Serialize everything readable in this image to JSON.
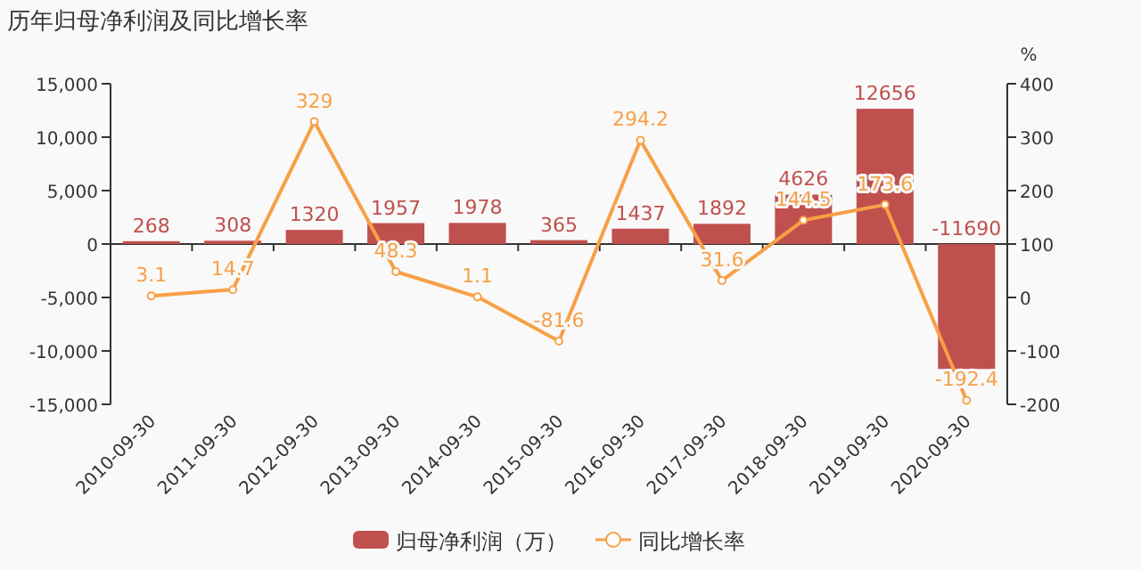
{
  "chart_data": {
    "type": "bar",
    "title": "历年归母净利润及同比增长率",
    "categories": [
      "2010-09-30",
      "2011-09-30",
      "2012-09-30",
      "2013-09-30",
      "2014-09-30",
      "2015-09-30",
      "2016-09-30",
      "2017-09-30",
      "2018-09-30",
      "2019-09-30",
      "2020-09-30"
    ],
    "series": [
      {
        "name": "归母净利润（万）",
        "color": "#c0504d",
        "values": [
          268,
          308,
          1320,
          1957,
          1978,
          365,
          1437,
          1892,
          4626,
          12656,
          -11690
        ]
      },
      {
        "name": "同比增长率",
        "type": "line",
        "axis": "y2",
        "color": "#f7a046",
        "values": [
          3.1,
          14.7,
          329,
          48.3,
          1.1,
          -81.6,
          294.2,
          31.6,
          144.5,
          173.6,
          -192.4
        ]
      }
    ],
    "ylim": [
      -15000,
      15000
    ],
    "yticks": [
      {
        "value": -15000,
        "label": "-15,000"
      },
      {
        "value": -10000,
        "label": "-10,000"
      },
      {
        "value": -5000,
        "label": "-5,000"
      },
      0,
      {
        "value": 5000,
        "label": "5,000"
      },
      {
        "value": 10000,
        "label": "10,000"
      },
      {
        "value": 15000,
        "label": "15,000"
      }
    ],
    "y2lim": [
      -200,
      400
    ],
    "y2ticks": [
      -200,
      -100,
      0,
      100,
      200,
      300,
      400
    ],
    "y2label": "%",
    "data_labels": true,
    "legend": "bottom",
    "marker": "circle"
  }
}
